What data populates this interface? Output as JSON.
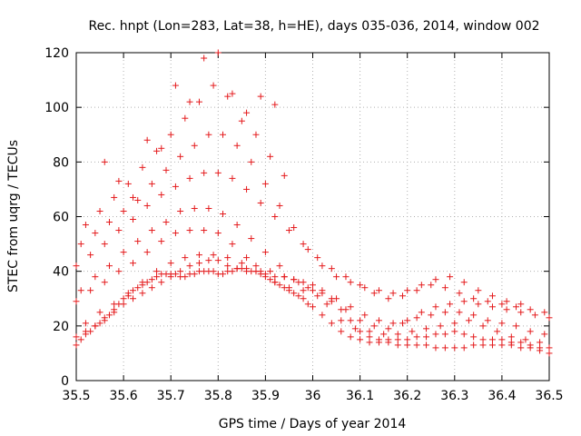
{
  "chart_data": {
    "type": "scatter",
    "title": "Rec. hnpt (Lon=283, Lat=38, h=HE), days 035-036, 2014, window 002",
    "xlabel": "GPS time / Days of year 2014",
    "ylabel": "STEC from uqrg / TECUs",
    "xlim": [
      35.5,
      36.5
    ],
    "ylim": [
      0,
      120
    ],
    "xticks": [
      "35.5",
      "35.6",
      "35.7",
      "35.8",
      "35.9",
      "36",
      "36.1",
      "36.2",
      "36.3",
      "36.4",
      "36.5"
    ],
    "yticks": [
      "0",
      "20",
      "40",
      "60",
      "80",
      "100",
      "120"
    ],
    "marker": "+",
    "color": "#e41a1c",
    "series": [
      {
        "name": "",
        "x": [
          35.5,
          35.51,
          35.52,
          35.53,
          35.54,
          35.55,
          35.56,
          35.57,
          35.58,
          35.59,
          35.6,
          35.61,
          35.62,
          35.63,
          35.64,
          35.65,
          35.66,
          35.67,
          35.68,
          35.69,
          35.7,
          35.71,
          35.72,
          35.73,
          35.74,
          35.75,
          35.76,
          35.77,
          35.78,
          35.79,
          35.8,
          35.81,
          35.82,
          35.83,
          35.84,
          35.85,
          35.86,
          35.87,
          35.88,
          35.89,
          35.9,
          35.91,
          35.92,
          35.93,
          35.94,
          35.95,
          35.96,
          35.97,
          35.98,
          35.99,
          36.0,
          36.02,
          36.04,
          36.06,
          36.08,
          36.1,
          36.12,
          36.14,
          36.16,
          36.18,
          36.2,
          36.22,
          36.24,
          36.26,
          36.28,
          36.3,
          36.32,
          36.34,
          36.36,
          36.38,
          36.4,
          36.42,
          36.44,
          36.46,
          36.48,
          36.5
        ],
        "y": [
          13,
          15,
          17,
          18,
          20,
          21,
          23,
          24,
          26,
          28,
          30,
          31,
          33,
          34,
          35,
          36,
          37,
          38,
          39,
          39,
          39,
          39,
          38,
          38,
          39,
          39,
          40,
          40,
          40,
          40,
          39,
          39,
          40,
          40,
          41,
          41,
          41,
          40,
          40,
          39,
          38,
          37,
          36,
          35,
          34,
          33,
          32,
          31,
          30,
          28,
          27,
          24,
          21,
          18,
          16,
          15,
          14,
          14,
          14,
          13,
          13,
          13,
          13,
          12,
          12,
          12,
          12,
          13,
          13,
          13,
          13,
          13,
          12,
          12,
          11,
          10
        ]
      },
      {
        "name": "",
        "x": [
          35.5,
          35.52,
          35.54,
          35.56,
          35.58,
          35.6,
          35.62,
          35.64,
          35.66,
          35.68,
          35.7,
          35.72,
          35.74,
          35.76,
          35.78,
          35.8,
          35.82,
          35.84,
          35.86,
          35.88,
          35.9,
          35.92,
          35.94,
          35.96,
          35.98,
          36.0,
          36.02,
          36.04,
          36.06,
          36.08,
          36.1,
          36.12,
          36.14,
          36.16,
          36.18,
          36.2,
          36.22,
          36.24,
          36.26,
          36.28,
          36.3,
          36.32,
          36.34,
          36.36,
          36.38,
          36.4,
          36.42,
          36.44,
          36.46,
          36.48,
          36.5
        ],
        "y": [
          16,
          18,
          20,
          22,
          25,
          28,
          30,
          32,
          34,
          36,
          38,
          40,
          42,
          43,
          44,
          44,
          42,
          41,
          40,
          40,
          39,
          38,
          38,
          37,
          36,
          35,
          33,
          30,
          26,
          22,
          18,
          16,
          15,
          15,
          15,
          15,
          16,
          16,
          17,
          17,
          18,
          17,
          16,
          15,
          15,
          15,
          14,
          14,
          13,
          12,
          12
        ]
      },
      {
        "name": "",
        "x": [
          35.52,
          35.55,
          35.58,
          35.61,
          35.64,
          35.67,
          35.7,
          35.73,
          35.76,
          35.79,
          35.82,
          35.85,
          35.88,
          35.91,
          35.94,
          35.97,
          36.0,
          36.03,
          36.06,
          36.09,
          36.12,
          36.15,
          36.18,
          36.21,
          36.24,
          36.27,
          36.3,
          36.33,
          36.36,
          36.39,
          36.42,
          36.45,
          36.48
        ],
        "y": [
          21,
          25,
          28,
          32,
          36,
          40,
          43,
          45,
          46,
          46,
          45,
          43,
          42,
          40,
          38,
          36,
          33,
          28,
          22,
          19,
          18,
          17,
          17,
          18,
          19,
          20,
          21,
          22,
          20,
          18,
          16,
          15,
          14
        ]
      },
      {
        "name": "",
        "x": [
          35.5,
          35.53,
          35.56,
          35.59,
          35.62,
          35.65,
          35.68,
          35.71,
          35.74,
          35.77,
          35.8,
          35.83,
          35.86,
          35.89,
          35.92,
          35.95,
          35.98,
          36.01,
          36.04,
          36.07,
          36.1,
          36.13,
          36.16,
          36.19,
          36.22,
          36.25,
          36.28,
          36.31,
          36.34,
          36.37,
          36.4,
          36.43,
          36.46,
          36.49
        ],
        "y": [
          29,
          33,
          36,
          40,
          43,
          47,
          51,
          54,
          55,
          55,
          54,
          50,
          45,
          40,
          36,
          34,
          33,
          31,
          29,
          26,
          22,
          20,
          19,
          21,
          23,
          24,
          25,
          25,
          24,
          22,
          21,
          20,
          18,
          17
        ]
      },
      {
        "name": "",
        "x": [
          35.51,
          35.54,
          35.57,
          35.6,
          35.63,
          35.66,
          35.69,
          35.72,
          35.75,
          35.78,
          35.81,
          35.84,
          35.87,
          35.9,
          35.93,
          35.96,
          35.99,
          36.02,
          36.05,
          36.08,
          36.11,
          36.14,
          36.17,
          36.2,
          36.23,
          36.26,
          36.29,
          36.32,
          36.35,
          36.38,
          36.41,
          36.44,
          36.47,
          36.5
        ],
        "y": [
          33,
          38,
          42,
          47,
          51,
          55,
          58,
          62,
          63,
          63,
          61,
          57,
          52,
          47,
          42,
          37,
          34,
          32,
          30,
          27,
          24,
          22,
          21,
          22,
          25,
          27,
          28,
          29,
          28,
          27,
          26,
          25,
          24,
          23
        ]
      },
      {
        "name": "",
        "x": [
          35.5,
          35.53,
          35.56,
          35.59,
          35.62,
          35.65,
          35.68,
          35.71,
          35.74,
          35.77,
          35.8,
          35.83,
          35.86,
          35.89,
          35.92,
          35.95,
          35.98,
          36.01,
          36.04,
          36.07,
          36.1,
          36.13,
          36.16,
          36.19,
          36.22,
          36.25,
          36.28,
          36.31,
          36.34,
          36.37,
          36.4,
          36.43,
          36.46,
          36.49
        ],
        "y": [
          42,
          46,
          50,
          55,
          59,
          64,
          68,
          71,
          74,
          76,
          76,
          74,
          70,
          65,
          60,
          55,
          50,
          45,
          41,
          38,
          35,
          32,
          30,
          31,
          33,
          35,
          34,
          32,
          30,
          29,
          28,
          27,
          26,
          25
        ]
      },
      {
        "name": "",
        "x": [
          35.51,
          35.54,
          35.57,
          35.6,
          35.63,
          35.66,
          35.69,
          35.72,
          35.75,
          35.78,
          35.81,
          35.84,
          35.87,
          35.9,
          35.93,
          35.96,
          35.99,
          36.02,
          36.05,
          36.08,
          36.11,
          36.14,
          36.17,
          36.2,
          36.23,
          36.26,
          36.29,
          36.32,
          36.35,
          36.38,
          36.41,
          36.44
        ],
        "y": [
          50,
          54,
          58,
          62,
          66,
          72,
          77,
          82,
          86,
          90,
          90,
          86,
          80,
          72,
          64,
          56,
          48,
          42,
          38,
          36,
          34,
          33,
          32,
          33,
          35,
          37,
          38,
          36,
          33,
          31,
          29,
          28
        ]
      },
      {
        "name": "",
        "x": [
          35.52,
          35.55,
          35.58,
          35.61,
          35.64,
          35.67,
          35.7,
          35.73,
          35.76,
          35.79,
          35.82,
          35.85,
          35.88,
          35.91,
          35.94
        ],
        "y": [
          57,
          62,
          67,
          72,
          78,
          84,
          90,
          96,
          102,
          108,
          104,
          95,
          90,
          82,
          75
        ]
      },
      {
        "name": "",
        "x": [
          35.56,
          35.59,
          35.62,
          35.65,
          35.68,
          35.71,
          35.74,
          35.77,
          35.8,
          35.83,
          35.86,
          35.89,
          35.92
        ],
        "y": [
          80,
          73,
          67,
          88,
          85,
          108,
          102,
          118,
          120,
          105,
          98,
          104,
          101
        ]
      }
    ]
  }
}
